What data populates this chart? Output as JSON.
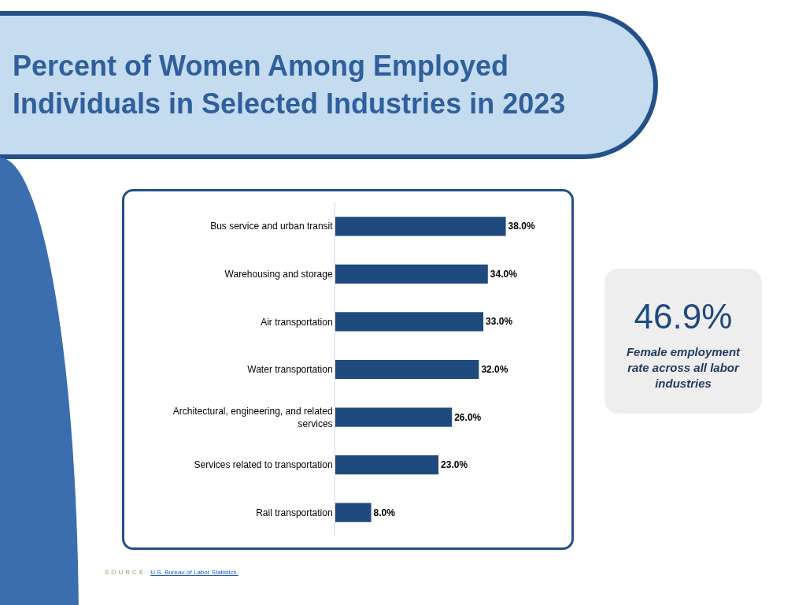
{
  "chart_data": {
    "type": "bar",
    "orientation": "horizontal",
    "title": "Percent of Women Among Employed Individuals in Selected Industries in 2023",
    "categories": [
      "Bus service and urban transit",
      "Warehousing and storage",
      "Air transportation",
      "Water transportation",
      "Architectural, engineering, and related services",
      "Services related to transportation",
      "Rail transportation"
    ],
    "values": [
      38.0,
      34.0,
      33.0,
      32.0,
      26.0,
      23.0,
      8.0
    ],
    "value_labels": [
      "38.0%",
      "34.0%",
      "33.0%",
      "32.0%",
      "26.0%",
      "23.0%",
      "8.0%"
    ],
    "color": "#1f4a7e",
    "tick_labels": "y",
    "annotations": [
      "46.9%",
      "Female employment rate across all labor industries",
      "SOURCE",
      "U.S. Bureau of Labor Statistics."
    ]
  }
}
